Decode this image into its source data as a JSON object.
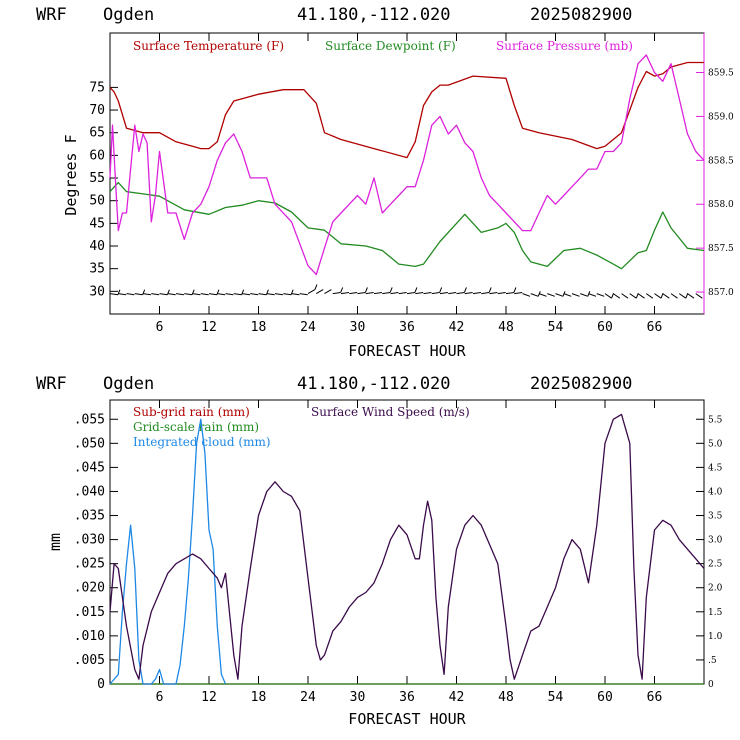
{
  "header": {
    "model": "WRF",
    "location": "Ogden",
    "coords": "41.180,-112.020",
    "run": "2025082900"
  },
  "colors": {
    "temperature": "#b00000",
    "dewpoint": "#228b22",
    "pressure": "#dd22dd",
    "subgrid_rain": "#b00000",
    "grid_rain": "#228b22",
    "cloud": "#1e88e5",
    "wind": "#3a0a4a"
  },
  "chart_data": [
    {
      "type": "line",
      "title": "",
      "xlabel": "FORECAST HOUR",
      "ylabel": "Degrees F",
      "xlim": [
        0,
        72
      ],
      "ylim": [
        25,
        87
      ],
      "y2lim": [
        856.75,
        859.95
      ],
      "x_ticks": [
        6,
        12,
        18,
        24,
        30,
        36,
        42,
        48,
        54,
        60,
        66
      ],
      "x_tick_labels": [
        "6",
        "12",
        "18",
        "24",
        "30",
        "36",
        "42",
        "48",
        "54",
        "60",
        "66"
      ],
      "y_ticks": [
        30,
        35,
        40,
        45,
        50,
        55,
        60,
        65,
        70,
        75
      ],
      "y_tick_labels": [
        "30",
        "35",
        "40",
        "45",
        "50",
        "55",
        "60",
        "65",
        "70",
        "75"
      ],
      "y2_ticks": [
        857.0,
        857.5,
        858.0,
        858.5,
        859.0,
        859.5
      ],
      "y2_tick_labels": [
        "857.0",
        "857.5",
        "858.0",
        "858.5",
        "859.0",
        "859.5"
      ],
      "legend": [
        "Surface Temperature (F)",
        "Surface Dewpoint (F)",
        "Surface Pressure (mb)"
      ],
      "series": [
        {
          "name": "Surface Temperature (F)",
          "axis": "left",
          "x": [
            0,
            0.5,
            1,
            2,
            4,
            6,
            8,
            10,
            11,
            12,
            13,
            14,
            15,
            18,
            21,
            23.5,
            25,
            26,
            28,
            32,
            36,
            37,
            38,
            39,
            40,
            41,
            44,
            48,
            49,
            50,
            52,
            56,
            59,
            60,
            61,
            62,
            63,
            64,
            65,
            66,
            67,
            68,
            70,
            72
          ],
          "y": [
            75,
            74,
            72,
            66,
            65,
            65,
            63,
            62,
            61.5,
            61.5,
            63,
            69,
            72,
            73.5,
            74.5,
            74.5,
            71.5,
            65,
            63.5,
            61.5,
            59.5,
            63,
            71,
            74,
            75.5,
            75.5,
            77.5,
            77,
            71,
            66,
            65,
            63.5,
            61.5,
            62,
            63.5,
            65,
            70,
            75,
            78.5,
            77.5,
            78,
            79.5,
            80.5,
            80.5
          ]
        },
        {
          "name": "Surface Dewpoint (F)",
          "axis": "left",
          "x": [
            0,
            0.5,
            1,
            2,
            4,
            6,
            9,
            12,
            14,
            16,
            18,
            20,
            22,
            24,
            26,
            28,
            31,
            33,
            35,
            37,
            38,
            40,
            42,
            43,
            45,
            47,
            48,
            49,
            50,
            51,
            53,
            55,
            57,
            59,
            60,
            61,
            62,
            64,
            65,
            66,
            67,
            68,
            70,
            72
          ],
          "y": [
            52,
            53,
            54,
            52,
            51.5,
            51,
            48,
            47,
            48.5,
            49,
            50,
            49.5,
            47.5,
            44,
            43.5,
            40.5,
            40,
            39,
            36,
            35.5,
            36,
            41,
            45,
            47,
            43,
            44,
            45,
            43,
            39,
            36.5,
            35.5,
            39,
            39.5,
            38,
            37,
            36,
            35,
            38.5,
            39,
            43.5,
            47.5,
            44,
            39.5,
            39
          ]
        },
        {
          "name": "Surface Pressure (mb)",
          "axis": "right",
          "x": [
            0,
            0.3,
            0.7,
            1,
            1.5,
            2,
            2.5,
            3,
            3.5,
            4,
            4.5,
            5,
            5.5,
            6,
            7,
            8,
            9,
            10,
            11,
            12,
            13,
            14,
            15,
            16,
            17,
            18,
            19,
            20,
            22,
            24,
            25,
            26,
            27,
            28,
            29,
            30,
            31,
            32,
            33,
            34,
            35,
            36,
            37,
            38,
            39,
            40,
            41,
            42,
            43,
            44,
            45,
            46,
            47,
            48,
            49,
            50,
            51,
            52,
            53,
            54,
            55,
            56,
            57,
            58,
            59,
            60,
            61,
            62,
            63,
            64,
            65,
            66,
            67,
            68,
            69,
            70,
            71,
            72
          ],
          "y": [
            858.3,
            858.9,
            858.2,
            857.7,
            857.9,
            857.9,
            858.4,
            858.9,
            858.6,
            858.8,
            858.7,
            857.8,
            858.1,
            858.6,
            857.9,
            857.9,
            857.6,
            857.9,
            858.0,
            858.2,
            858.5,
            858.7,
            858.8,
            858.6,
            858.3,
            858.3,
            858.3,
            858.0,
            857.8,
            857.3,
            857.2,
            857.5,
            857.8,
            857.9,
            858.0,
            858.1,
            858.0,
            858.3,
            857.9,
            858.0,
            858.1,
            858.2,
            858.2,
            858.5,
            858.9,
            859.0,
            858.8,
            858.9,
            858.7,
            858.6,
            858.3,
            858.1,
            858.0,
            857.9,
            857.8,
            857.7,
            857.7,
            857.9,
            858.1,
            858.0,
            858.1,
            858.2,
            858.3,
            858.4,
            858.4,
            858.6,
            858.6,
            858.7,
            859.2,
            859.6,
            859.7,
            859.5,
            859.4,
            859.6,
            859.2,
            858.8,
            858.6,
            858.5
          ]
        }
      ],
      "wind_barbs_row": 29.5
    },
    {
      "type": "line",
      "title": "",
      "xlabel": "FORECAST HOUR",
      "ylabel": "mm",
      "xlim": [
        0,
        72
      ],
      "ylim": [
        0,
        0.059
      ],
      "y2lim": [
        0,
        5.9
      ],
      "x_ticks": [
        6,
        12,
        18,
        24,
        30,
        36,
        42,
        48,
        54,
        60,
        66
      ],
      "x_tick_labels": [
        "6",
        "12",
        "18",
        "24",
        "30",
        "36",
        "42",
        "48",
        "54",
        "60",
        "66"
      ],
      "y_ticks": [
        0,
        0.005,
        0.01,
        0.015,
        0.02,
        0.025,
        0.03,
        0.035,
        0.04,
        0.045,
        0.05,
        0.055
      ],
      "y_tick_labels": [
        "0",
        ".005",
        ".010",
        ".015",
        ".020",
        ".025",
        ".030",
        ".035",
        ".040",
        ".045",
        ".050",
        ".055"
      ],
      "y2_ticks": [
        0,
        0.5,
        1.0,
        1.5,
        2.0,
        2.5,
        3.0,
        3.5,
        4.0,
        4.5,
        5.0,
        5.5
      ],
      "y2_tick_labels": [
        "0",
        ".5",
        "1.0",
        "1.5",
        "2.0",
        "2.5",
        "3.0",
        "3.5",
        "4.0",
        "4.5",
        "5.0",
        "5.5"
      ],
      "legend": [
        "Sub-grid rain (mm)",
        "Grid-scale rain (mm)",
        "Integrated cloud (mm)",
        "Surface Wind Speed (m/s)"
      ],
      "series": [
        {
          "name": "Sub-grid rain (mm)",
          "axis": "left",
          "x": [
            0,
            72
          ],
          "y": [
            0,
            0
          ]
        },
        {
          "name": "Grid-scale rain (mm)",
          "axis": "left",
          "x": [
            0,
            72
          ],
          "y": [
            0,
            0
          ]
        },
        {
          "name": "Integrated cloud (mm)",
          "axis": "left",
          "x": [
            0,
            1,
            1.5,
            2,
            2.5,
            3,
            3.5,
            4,
            4.5,
            5,
            5.5,
            6,
            6.5,
            7,
            7.5,
            8,
            8.5,
            9,
            9.5,
            10,
            10.5,
            11,
            11.5,
            12,
            12.5,
            13,
            13.5,
            14
          ],
          "y": [
            0,
            0.002,
            0.015,
            0.025,
            0.033,
            0.024,
            0.005,
            0,
            0,
            0,
            0.001,
            0.003,
            0,
            0,
            0,
            0,
            0.004,
            0.012,
            0.022,
            0.035,
            0.05,
            0.055,
            0.048,
            0.032,
            0.028,
            0.012,
            0.002,
            0
          ]
        },
        {
          "name": "Surface Wind Speed (m/s)",
          "axis": "right",
          "x": [
            0,
            0.5,
            1,
            2,
            3,
            3.5,
            4,
            5,
            6,
            7,
            8,
            9,
            10,
            11,
            12,
            13,
            13.5,
            14,
            15,
            15.5,
            16,
            17,
            18,
            19,
            20,
            21,
            22,
            23,
            24,
            25,
            25.5,
            26,
            27,
            28,
            29,
            30,
            31,
            32,
            33,
            34,
            35,
            36,
            37,
            37.5,
            38,
            38.5,
            39,
            39.5,
            40,
            40.5,
            41,
            42,
            43,
            44,
            45,
            46,
            47,
            48,
            48.5,
            49,
            50,
            51,
            52,
            53,
            54,
            55,
            56,
            57,
            58,
            59,
            60,
            61,
            62,
            63,
            63.5,
            64,
            64.5,
            65,
            66,
            67,
            68,
            69,
            70,
            71,
            72
          ],
          "y": [
            1.5,
            2.5,
            2.4,
            1.2,
            0.3,
            0.1,
            0.8,
            1.5,
            1.9,
            2.3,
            2.5,
            2.6,
            2.7,
            2.6,
            2.4,
            2.2,
            2.0,
            2.3,
            0.6,
            0.1,
            1.2,
            2.4,
            3.5,
            4.0,
            4.2,
            4.0,
            3.9,
            3.6,
            2.2,
            0.8,
            0.5,
            0.6,
            1.1,
            1.3,
            1.6,
            1.8,
            1.9,
            2.1,
            2.5,
            3.0,
            3.3,
            3.1,
            2.6,
            2.6,
            3.3,
            3.8,
            3.4,
            1.8,
            0.8,
            0.2,
            1.6,
            2.8,
            3.3,
            3.5,
            3.3,
            2.9,
            2.5,
            1.2,
            0.5,
            0.1,
            0.6,
            1.1,
            1.2,
            1.6,
            2.0,
            2.6,
            3.0,
            2.8,
            2.1,
            3.3,
            5.0,
            5.5,
            5.6,
            5.0,
            2.4,
            0.6,
            0.1,
            1.8,
            3.2,
            3.4,
            3.3,
            3.0,
            2.8,
            2.6,
            2.4
          ]
        }
      ]
    }
  ]
}
